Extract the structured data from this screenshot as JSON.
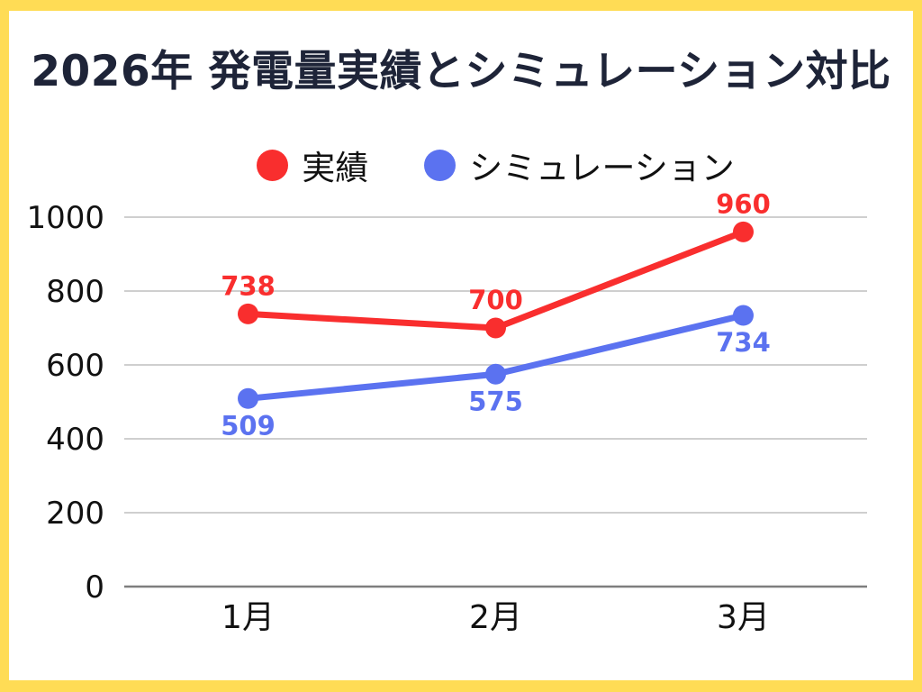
{
  "page": {
    "title": "2026年 発電量実績とシミュレーション対比"
  },
  "colors": {
    "frame_yellow": "#FFDC55",
    "title_navy": "#1E2438",
    "actual_red": "#F92E2E",
    "simulation_blue": "#5B72F0",
    "tick_text": "#111111",
    "gridline": "#CFCFCF",
    "zero_line": "#7E7E7E",
    "background": "#FFFFFF"
  },
  "legend": [
    {
      "label": "実績",
      "color": "#F92E2E"
    },
    {
      "label": "シミュレーション",
      "color": "#5B72F0"
    }
  ],
  "chart_data": {
    "type": "line",
    "title": "2026年 発電量実績とシミュレーション対比",
    "categories": [
      "1月",
      "2月",
      "3月"
    ],
    "series": [
      {
        "name": "実績",
        "color": "#F92E2E",
        "values": [
          738,
          700,
          960
        ],
        "label_position": "above"
      },
      {
        "name": "シミュレーション",
        "color": "#5B72F0",
        "values": [
          509,
          575,
          734
        ],
        "label_position": "below"
      }
    ],
    "xlabel": "",
    "ylabel": "",
    "ylim": [
      0,
      1000
    ],
    "yticks": [
      0,
      200,
      400,
      600,
      800,
      1000
    ],
    "grid": true,
    "legend_position": "top"
  }
}
